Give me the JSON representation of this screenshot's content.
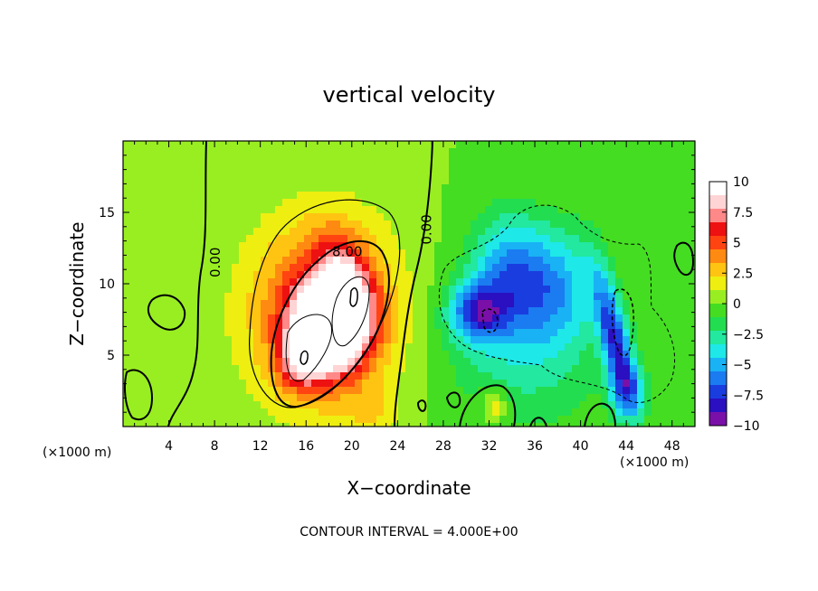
{
  "chart_data": {
    "type": "heatmap",
    "title": "vertical velocity",
    "xlabel": "X−coordinate",
    "ylabel": "Z−coordinate",
    "x_unit_left": "(×1000 m)",
    "x_unit_right": "(×1000 m)",
    "footer": "CONTOUR INTERVAL = 4.000E+00",
    "xlim": [
      0,
      50
    ],
    "ylim": [
      0,
      20
    ],
    "x_ticks": [
      4,
      8,
      12,
      16,
      20,
      24,
      28,
      32,
      36,
      40,
      44,
      48
    ],
    "x_tick_labels": [
      "4",
      "8",
      "12",
      "16",
      "20",
      "24",
      "28",
      "32",
      "36",
      "40",
      "44",
      "48"
    ],
    "y_ticks": [
      5,
      10,
      15
    ],
    "y_tick_labels": [
      "5",
      "10",
      "15"
    ],
    "grid": false,
    "colorbar": {
      "min": -10,
      "max": 10,
      "ticks": [
        10,
        7.5,
        5,
        2.5,
        0,
        -2.5,
        -5,
        -7.5,
        -10
      ],
      "tick_labels": [
        "10",
        "7.5",
        "5",
        "2.5",
        "0",
        "−2.5",
        "−5",
        "−7.5",
        "−10"
      ],
      "colors": [
        "#7a10a8",
        "#2a10c0",
        "#1a3de0",
        "#1a7cf0",
        "#19b2f5",
        "#1ee8e8",
        "#22e8a0",
        "#22dd50",
        "#44dd22",
        "#99ee22",
        "#eeee11",
        "#ffc411",
        "#ff8a11",
        "#ff4411",
        "#ee1111",
        "#ff8888",
        "#ffd4d4",
        "#ffffff"
      ]
    },
    "contour_labels": [
      {
        "text": "0.00",
        "x": 8.1,
        "z": 11.5,
        "rotate": -90
      },
      {
        "text": "0.00",
        "x": 26.6,
        "z": 13.8,
        "rotate": -90
      },
      {
        "text": "8.00",
        "x": 19.6,
        "z": 12.2,
        "rotate": 0
      }
    ],
    "features": [
      {
        "x": 18.0,
        "z": 7.0,
        "amp": 12,
        "sx": 3.0,
        "sz": 3.0,
        "rot": 0.7
      },
      {
        "x": 19.5,
        "z": 10.0,
        "amp": 5,
        "sx": 2.0,
        "sz": 3.5,
        "rot": 0.4
      },
      {
        "x": 15.5,
        "z": 4.5,
        "amp": 4,
        "sx": 2.0,
        "sz": 2.0,
        "rot": 0.0
      },
      {
        "x": 17.5,
        "z": 8.0,
        "amp": 6,
        "sx": 6.5,
        "sz": 6.5,
        "rot": 0.5
      },
      {
        "x": 31.0,
        "z": 8.0,
        "amp": -6,
        "sx": 2.5,
        "sz": 2.0,
        "rot": 0.0
      },
      {
        "x": 33.5,
        "z": 11.0,
        "amp": -4,
        "sx": 3.0,
        "sz": 4.0,
        "rot": 0.0
      },
      {
        "x": 37.5,
        "z": 10.0,
        "amp": -4,
        "sx": 3.5,
        "sz": 4.0,
        "rot": 0.0
      },
      {
        "x": 43.0,
        "z": 6.0,
        "amp": -7,
        "sx": 1.2,
        "sz": 5.0,
        "rot": 0.3
      },
      {
        "x": 35.0,
        "z": 6.0,
        "amp": -3,
        "sx": 7.0,
        "sz": 6.0,
        "rot": 0.0
      },
      {
        "x": 44.0,
        "z": 2.5,
        "amp": -4,
        "sx": 1.5,
        "sz": 2.0,
        "rot": 0.0
      },
      {
        "x": 32.5,
        "z": 1.5,
        "amp": 3,
        "sx": 1.2,
        "sz": 1.2,
        "rot": 0.0
      },
      {
        "x": 3.0,
        "z": 15.0,
        "amp": 1,
        "sx": 4.0,
        "sz": 4.0,
        "rot": 0.0
      },
      {
        "x": 22.0,
        "z": 1.0,
        "amp": 1.5,
        "sx": 2.5,
        "sz": 1.5,
        "rot": 0.0
      },
      {
        "x": 48.0,
        "z": 10.0,
        "amp": -1,
        "sx": 2.5,
        "sz": 3.0,
        "rot": 0.0
      }
    ]
  }
}
